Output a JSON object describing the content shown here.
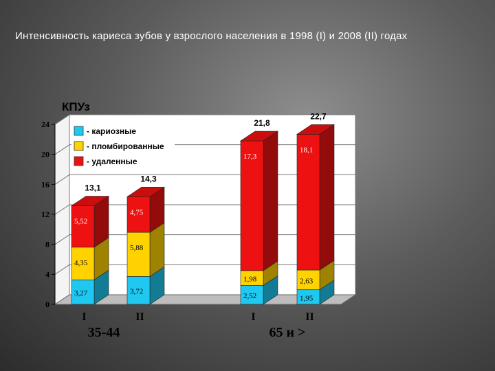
{
  "slide_title": "Интенсивность кариеса зубов у взрослого населения в 1998 (I) и 2008 (II) годах",
  "chart_data": {
    "type": "bar",
    "stacked": true,
    "style": "3d",
    "ylabel": "КПУз",
    "ylim": [
      0,
      24
    ],
    "yticks": [
      "0",
      "4",
      "8",
      "12",
      "16",
      "20",
      "24"
    ],
    "legend_position": "top-left",
    "groups": [
      {
        "label": "35-44",
        "categories": [
          "I",
          "II"
        ]
      },
      {
        "label": "65 и >",
        "categories": [
          "I",
          "II"
        ]
      }
    ],
    "categories": [
      "I",
      "II",
      "I",
      "II"
    ],
    "series": [
      {
        "name": "- кариозные",
        "color": "#1ec8f0",
        "values": [
          3.27,
          3.72,
          2.52,
          1.95
        ],
        "labels": [
          "3,27",
          "3,72",
          "2,52",
          "1,95"
        ]
      },
      {
        "name": "- пломбированные",
        "color": "#ffd200",
        "values": [
          4.35,
          5.88,
          1.98,
          2.63
        ],
        "labels": [
          "4,35",
          "5,88",
          "1,98",
          "2,63"
        ]
      },
      {
        "name": "- удаленные",
        "color": "#ee1111",
        "values": [
          5.52,
          4.75,
          17.3,
          18.1
        ],
        "labels": [
          "5,52",
          "4,75",
          "17,3",
          "18,1"
        ]
      }
    ],
    "totals": [
      "13,1",
      "14,3",
      "21,8",
      "22,7"
    ],
    "grid": true
  }
}
